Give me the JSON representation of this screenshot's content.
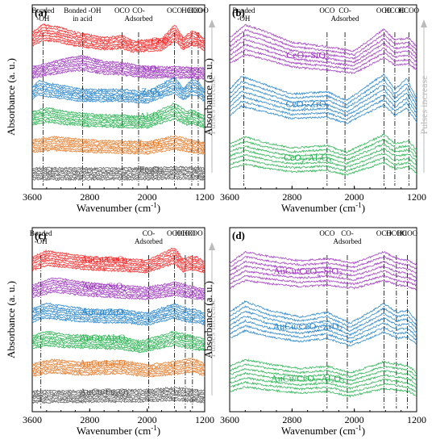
{
  "chart_data": [
    {
      "type": "line",
      "panel_label": "(a)",
      "xlabel": "Wavenumber (cm",
      "xlabel_sup": "-1",
      "xlabel_end": ")",
      "ylabel": "Absorbance (a. u.)",
      "xlim": [
        3600,
        1200
      ],
      "x_ticks": [
        3600,
        2800,
        2000,
        1200
      ],
      "pulses_label": "Pulses increase",
      "annotations": [
        {
          "label": "Bonded\n-OH",
          "x": 3450
        },
        {
          "label": "Bonded -OH\nin acid",
          "x": 2900
        },
        {
          "label": "OCO",
          "x": 2350
        },
        {
          "label": "CO-\nAdsorbed",
          "x": 2120
        },
        {
          "label": "OCO",
          "x": 1620
        },
        {
          "label": "HCOO",
          "x": 1380
        },
        {
          "label": "HCOO",
          "x": 1290
        }
      ],
      "series": [
        {
          "name": "CeO2",
          "color": "#ff1a1a",
          "label_x": 1800,
          "profile": [
            [
              3600,
              0.6
            ],
            [
              3450,
              0.95
            ],
            [
              3250,
              0.85
            ],
            [
              3000,
              0.6
            ],
            [
              2600,
              0.35
            ],
            [
              2350,
              0.45
            ],
            [
              2200,
              0.2
            ],
            [
              1800,
              0.3
            ],
            [
              1620,
              0.95
            ],
            [
              1500,
              0.35
            ],
            [
              1380,
              0.65
            ],
            [
              1290,
              0.55
            ],
            [
              1200,
              0.3
            ]
          ]
        },
        {
          "name": "SiO2",
          "color": "#9b30c0",
          "label_x": 1950,
          "profile": [
            [
              3600,
              0.2
            ],
            [
              3400,
              0.35
            ],
            [
              3100,
              0.6
            ],
            [
              2900,
              0.7
            ],
            [
              2600,
              0.45
            ],
            [
              2350,
              0.4
            ],
            [
              2000,
              0.2
            ],
            [
              1600,
              0.2
            ],
            [
              1200,
              0.15
            ]
          ]
        },
        {
          "name": "ZrO2",
          "color": "#1e7fcc",
          "label_x": 1950,
          "profile": [
            [
              3600,
              0.5
            ],
            [
              3500,
              0.75
            ],
            [
              3300,
              0.6
            ],
            [
              2900,
              0.35
            ],
            [
              2350,
              0.35
            ],
            [
              2000,
              0.25
            ],
            [
              1620,
              0.9
            ],
            [
              1500,
              0.4
            ],
            [
              1380,
              0.8
            ],
            [
              1290,
              0.7
            ],
            [
              1200,
              0.3
            ]
          ]
        },
        {
          "name": "Al2O3",
          "color": "#22b04b",
          "label_x": 1950,
          "profile": [
            [
              3600,
              0.5
            ],
            [
              3400,
              0.7
            ],
            [
              3100,
              0.5
            ],
            [
              2800,
              0.4
            ],
            [
              2400,
              0.35
            ],
            [
              2000,
              0.3
            ],
            [
              1620,
              0.9
            ],
            [
              1450,
              0.5
            ],
            [
              1380,
              0.6
            ],
            [
              1200,
              0.3
            ]
          ]
        },
        {
          "name": "La2O3",
          "color": "#e87722",
          "label_x": 1950,
          "profile": [
            [
              3600,
              0.4
            ],
            [
              3300,
              0.55
            ],
            [
              2800,
              0.4
            ],
            [
              2350,
              0.35
            ],
            [
              2000,
              0.3
            ],
            [
              1620,
              0.6
            ],
            [
              1500,
              0.5
            ],
            [
              1380,
              0.4
            ],
            [
              1200,
              0.3
            ]
          ]
        },
        {
          "name": "Fe2O3",
          "color": "#555555",
          "label_x": 1950,
          "profile": [
            [
              3600,
              0.3
            ],
            [
              3000,
              0.3
            ],
            [
              2400,
              0.3
            ],
            [
              2000,
              0.3
            ],
            [
              1600,
              0.35
            ],
            [
              1200,
              0.3
            ]
          ]
        }
      ]
    },
    {
      "type": "line",
      "panel_label": "(b)",
      "xlabel": "Wavenumber (cm",
      "xlabel_sup": "-1",
      "xlabel_end": ")",
      "ylabel": "Absorbance (a. u.)",
      "xlim": [
        3600,
        1200
      ],
      "x_ticks": [
        3600,
        2800,
        2000,
        1200
      ],
      "pulses_label": "Pulses increase",
      "annotations": [
        {
          "label": "Bonded\n-OH",
          "x": 3420
        },
        {
          "label": "OCO",
          "x": 2350
        },
        {
          "label": "CO-\nAdsorbed",
          "x": 2120
        },
        {
          "label": "OCO",
          "x": 1620
        },
        {
          "label": "HCOO",
          "x": 1480
        },
        {
          "label": "HCOO",
          "x": 1300
        }
      ],
      "series": [
        {
          "name": "CeO2-SiO2",
          "color": "#9b30c0",
          "label_x": 2600,
          "profile": [
            [
              3600,
              0.55
            ],
            [
              3400,
              0.85
            ],
            [
              3150,
              0.7
            ],
            [
              2800,
              0.45
            ],
            [
              2350,
              0.35
            ],
            [
              2000,
              0.25
            ],
            [
              1620,
              0.75
            ],
            [
              1480,
              0.5
            ],
            [
              1300,
              0.55
            ],
            [
              1200,
              0.35
            ]
          ]
        },
        {
          "name": "CeO2-ZrO2",
          "color": "#1e7fcc",
          "label_x": 2600,
          "profile": [
            [
              3600,
              0.55
            ],
            [
              3450,
              0.85
            ],
            [
              3200,
              0.7
            ],
            [
              2800,
              0.45
            ],
            [
              2350,
              0.5
            ],
            [
              2100,
              0.3
            ],
            [
              1620,
              0.9
            ],
            [
              1480,
              0.55
            ],
            [
              1330,
              0.8
            ],
            [
              1200,
              0.35
            ]
          ]
        },
        {
          "name": "CeO2-Al2O3",
          "color": "#22b04b",
          "label_x": 2600,
          "profile": [
            [
              3600,
              0.5
            ],
            [
              3400,
              0.65
            ],
            [
              3100,
              0.5
            ],
            [
              2800,
              0.4
            ],
            [
              2350,
              0.45
            ],
            [
              2100,
              0.3
            ],
            [
              1620,
              0.7
            ],
            [
              1480,
              0.5
            ],
            [
              1300,
              0.55
            ],
            [
              1200,
              0.35
            ]
          ]
        }
      ]
    },
    {
      "type": "line",
      "panel_label": "(c)",
      "xlabel": "Wavenumber (cm",
      "xlabel_sup": "-1",
      "xlabel_end": ")",
      "ylabel": "Absorbance (a. u.)",
      "xlim": [
        3600,
        1200
      ],
      "x_ticks": [
        3600,
        2800,
        2000,
        1200
      ],
      "pulses_label": "Pulses increase",
      "annotations": [
        {
          "label": "Bonded\n-OH",
          "x": 3480
        },
        {
          "label": "CO-\nAdsorbed",
          "x": 1980
        },
        {
          "label": "OCO",
          "x": 1620
        },
        {
          "label": "HCOO",
          "x": 1470
        },
        {
          "label": "HCOO",
          "x": 1370
        }
      ],
      "series": [
        {
          "name": "AuCu/CeO2",
          "color": "#ff1a1a",
          "label_x": 2600,
          "profile": [
            [
              3600,
              0.5
            ],
            [
              3400,
              0.8
            ],
            [
              3100,
              0.65
            ],
            [
              2700,
              0.5
            ],
            [
              2350,
              0.45
            ],
            [
              2000,
              0.35
            ],
            [
              1620,
              0.95
            ],
            [
              1500,
              0.4
            ],
            [
              1400,
              0.55
            ],
            [
              1300,
              0.5
            ],
            [
              1200,
              0.3
            ]
          ]
        },
        {
          "name": "AuCu/SiO2",
          "color": "#9b30c0",
          "label_x": 2600,
          "profile": [
            [
              3600,
              0.4
            ],
            [
              3300,
              0.75
            ],
            [
              3100,
              0.65
            ],
            [
              2800,
              0.5
            ],
            [
              2400,
              0.4
            ],
            [
              2000,
              0.3
            ],
            [
              1620,
              0.55
            ],
            [
              1400,
              0.35
            ],
            [
              1200,
              0.25
            ]
          ]
        },
        {
          "name": "AuCu/ZrO2",
          "color": "#1e7fcc",
          "label_x": 2600,
          "profile": [
            [
              3600,
              0.5
            ],
            [
              3400,
              0.75
            ],
            [
              3100,
              0.6
            ],
            [
              2700,
              0.45
            ],
            [
              2350,
              0.45
            ],
            [
              2000,
              0.3
            ],
            [
              1620,
              0.75
            ],
            [
              1450,
              0.5
            ],
            [
              1300,
              0.45
            ],
            [
              1200,
              0.3
            ]
          ]
        },
        {
          "name": "AuCu/Al2O3",
          "color": "#22b04b",
          "label_x": 2600,
          "profile": [
            [
              3600,
              0.45
            ],
            [
              3400,
              0.65
            ],
            [
              3100,
              0.5
            ],
            [
              2700,
              0.45
            ],
            [
              2350,
              0.4
            ],
            [
              2100,
              0.2
            ],
            [
              1620,
              0.65
            ],
            [
              1450,
              0.5
            ],
            [
              1200,
              0.3
            ]
          ]
        },
        {
          "name": "AuCu/La2O3",
          "color": "#e87722",
          "label_x": 2600,
          "profile": [
            [
              3600,
              0.35
            ],
            [
              3300,
              0.55
            ],
            [
              2900,
              0.4
            ],
            [
              2350,
              0.5
            ],
            [
              2000,
              0.3
            ],
            [
              1620,
              0.45
            ],
            [
              1400,
              0.6
            ],
            [
              1300,
              0.5
            ],
            [
              1200,
              0.35
            ]
          ]
        },
        {
          "name": "AuCu/Fe2O3",
          "color": "#555555",
          "label_x": 2600,
          "profile": [
            [
              3600,
              0.3
            ],
            [
              3000,
              0.3
            ],
            [
              2400,
              0.35
            ],
            [
              2000,
              0.35
            ],
            [
              1620,
              0.45
            ],
            [
              1200,
              0.3
            ]
          ]
        }
      ]
    },
    {
      "type": "line",
      "panel_label": "(d)",
      "xlabel": "Wavenumber (cm",
      "xlabel_sup": "-1",
      "xlabel_end": ")",
      "ylabel": "Absorbance (a. u.)",
      "xlim": [
        3600,
        1200
      ],
      "x_ticks": [
        3600,
        2800,
        2000,
        1200
      ],
      "annotations": [
        {
          "label": "OCO",
          "x": 2350
        },
        {
          "label": "CO-\nAdsorbed",
          "x": 2090
        },
        {
          "label": "OCO",
          "x": 1620
        },
        {
          "label": "HCOO",
          "x": 1460
        },
        {
          "label": "HCOO",
          "x": 1320
        }
      ],
      "series": [
        {
          "name": "AuCu/CeO2-SiO2",
          "color": "#9b30c0",
          "label_x": 2600,
          "profile": [
            [
              3600,
              0.5
            ],
            [
              3400,
              0.75
            ],
            [
              3100,
              0.65
            ],
            [
              2700,
              0.55
            ],
            [
              2350,
              0.6
            ],
            [
              2000,
              0.5
            ],
            [
              1620,
              0.75
            ],
            [
              1450,
              0.6
            ],
            [
              1300,
              0.55
            ],
            [
              1200,
              0.45
            ]
          ]
        },
        {
          "name": "AuCu/CeO2-ZrO2",
          "color": "#1e7fcc",
          "label_x": 2600,
          "profile": [
            [
              3600,
              0.55
            ],
            [
              3400,
              0.8
            ],
            [
              3100,
              0.6
            ],
            [
              2700,
              0.45
            ],
            [
              2350,
              0.55
            ],
            [
              2050,
              0.3
            ],
            [
              1620,
              0.75
            ],
            [
              1450,
              0.55
            ],
            [
              1320,
              0.6
            ],
            [
              1200,
              0.35
            ]
          ]
        },
        {
          "name": "AuCu/CeO2-Al2O3",
          "color": "#22b04b",
          "label_x": 2600,
          "profile": [
            [
              3600,
              0.5
            ],
            [
              3400,
              0.65
            ],
            [
              3100,
              0.55
            ],
            [
              2700,
              0.45
            ],
            [
              2350,
              0.5
            ],
            [
              2050,
              0.35
            ],
            [
              1620,
              0.6
            ],
            [
              1450,
              0.55
            ],
            [
              1300,
              0.5
            ],
            [
              1200,
              0.35
            ]
          ]
        }
      ]
    }
  ]
}
